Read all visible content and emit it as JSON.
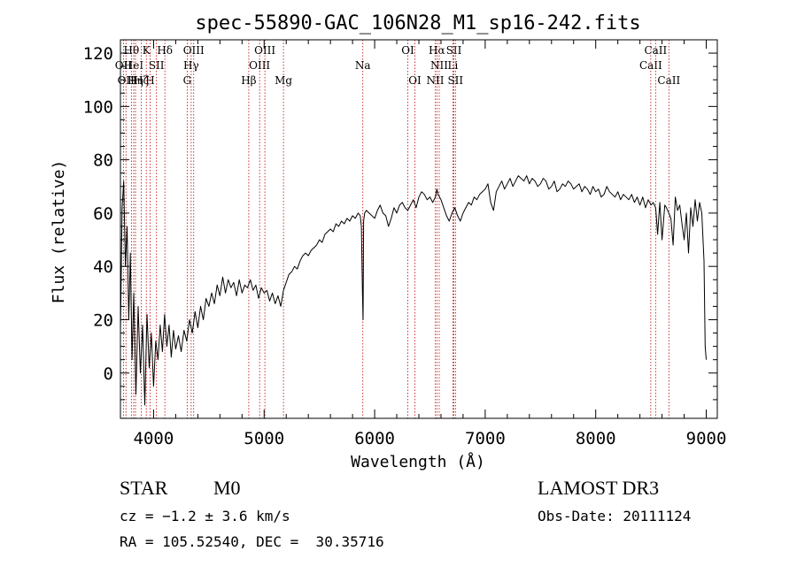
{
  "chart_data": {
    "type": "line",
    "title": "spec-55890-GAC_106N28_M1_sp16-242.fits",
    "xlabel": "Wavelength (Å)",
    "ylabel": "Flux (relative)",
    "xlim": [
      3700,
      9100
    ],
    "ylim": [
      -17,
      125
    ],
    "xticks": [
      4000,
      5000,
      6000,
      7000,
      8000,
      9000
    ],
    "yticks": [
      0,
      20,
      40,
      60,
      80,
      100,
      120
    ],
    "series": [
      {
        "color": "#000000",
        "x": [
          3700,
          3715,
          3730,
          3745,
          3760,
          3775,
          3790,
          3805,
          3820,
          3840,
          3860,
          3880,
          3900,
          3920,
          3940,
          3960,
          3980,
          4000,
          4020,
          4040,
          4060,
          4080,
          4100,
          4120,
          4140,
          4160,
          4180,
          4200,
          4225,
          4250,
          4275,
          4300,
          4325,
          4350,
          4375,
          4400,
          4425,
          4450,
          4475,
          4500,
          4525,
          4550,
          4575,
          4600,
          4625,
          4650,
          4675,
          4700,
          4725,
          4750,
          4775,
          4800,
          4825,
          4850,
          4875,
          4900,
          4925,
          4950,
          4975,
          5000,
          5025,
          5050,
          5075,
          5100,
          5125,
          5150,
          5175,
          5200,
          5225,
          5250,
          5275,
          5300,
          5325,
          5350,
          5375,
          5400,
          5425,
          5450,
          5475,
          5500,
          5525,
          5550,
          5575,
          5600,
          5625,
          5650,
          5675,
          5700,
          5725,
          5750,
          5775,
          5800,
          5825,
          5850,
          5870,
          5880,
          5890,
          5895,
          5900,
          5910,
          5925,
          5950,
          5975,
          6000,
          6025,
          6050,
          6075,
          6100,
          6125,
          6150,
          6175,
          6200,
          6225,
          6250,
          6275,
          6300,
          6325,
          6350,
          6375,
          6400,
          6425,
          6450,
          6475,
          6500,
          6525,
          6550,
          6563,
          6575,
          6600,
          6625,
          6650,
          6675,
          6700,
          6725,
          6750,
          6775,
          6800,
          6825,
          6850,
          6875,
          6900,
          6925,
          6950,
          6975,
          7000,
          7025,
          7050,
          7075,
          7100,
          7125,
          7150,
          7175,
          7200,
          7225,
          7250,
          7275,
          7300,
          7325,
          7350,
          7375,
          7400,
          7425,
          7450,
          7475,
          7500,
          7525,
          7550,
          7575,
          7600,
          7625,
          7650,
          7675,
          7700,
          7725,
          7750,
          7775,
          7800,
          7825,
          7850,
          7875,
          7900,
          7925,
          7950,
          7975,
          8000,
          8025,
          8050,
          8075,
          8100,
          8125,
          8150,
          8175,
          8200,
          8225,
          8250,
          8275,
          8300,
          8325,
          8350,
          8375,
          8400,
          8425,
          8450,
          8475,
          8500,
          8520,
          8542,
          8560,
          8580,
          8600,
          8625,
          8640,
          8662,
          8680,
          8700,
          8720,
          8740,
          8760,
          8780,
          8800,
          8820,
          8840,
          8860,
          8880,
          8900,
          8920,
          8940,
          8960,
          8980,
          8990,
          9000
        ],
        "y": [
          15,
          62,
          72,
          40,
          55,
          20,
          45,
          5,
          30,
          -8,
          25,
          0,
          18,
          -12,
          22,
          2,
          15,
          -5,
          12,
          5,
          18,
          8,
          22,
          10,
          18,
          6,
          16,
          9,
          14,
          8,
          16,
          12,
          20,
          15,
          23,
          17,
          25,
          20,
          28,
          25,
          30,
          26,
          33,
          29,
          36,
          30,
          35,
          32,
          34,
          29,
          35,
          30,
          33,
          32,
          35,
          31,
          33,
          28,
          32,
          30,
          31,
          27,
          30,
          26,
          29,
          25,
          31,
          34,
          37,
          38,
          40,
          39,
          42,
          44,
          45,
          44,
          46,
          47,
          48,
          50,
          49,
          52,
          53,
          54,
          53,
          56,
          55,
          57,
          56,
          58,
          57,
          59,
          58,
          60,
          59,
          55,
          30,
          20,
          57,
          60,
          61,
          60,
          59,
          58,
          61,
          63,
          60,
          59,
          55,
          58,
          62,
          60,
          63,
          64,
          62,
          61,
          63,
          65,
          62,
          66,
          68,
          67,
          65,
          66,
          64,
          66,
          69,
          67,
          65,
          62,
          59,
          57,
          60,
          62,
          59,
          57,
          60,
          62,
          64,
          63,
          66,
          65,
          67,
          68,
          69,
          71,
          64,
          61,
          68,
          70,
          72,
          69,
          71,
          73,
          70,
          72,
          74,
          73,
          72,
          74,
          71,
          73,
          72,
          70,
          71,
          73,
          72,
          69,
          70,
          72,
          68,
          69,
          71,
          70,
          72,
          71,
          69,
          70,
          71,
          68,
          70,
          69,
          67,
          70,
          68,
          69,
          66,
          67,
          70,
          68,
          67,
          66,
          68,
          65,
          67,
          66,
          65,
          67,
          64,
          66,
          63,
          66,
          62,
          65,
          63,
          64,
          62,
          52,
          64,
          50,
          63,
          62,
          60,
          58,
          48,
          66,
          61,
          63,
          56,
          50,
          60,
          45,
          62,
          55,
          65,
          57,
          64,
          60,
          42,
          10,
          5
        ]
      }
    ],
    "line_marks": [
      {
        "x": 3727,
        "label": "OII",
        "row": 2
      },
      {
        "x": 3750,
        "label": "OII",
        "row": 3
      },
      {
        "x": 3799,
        "label": "Hθ",
        "row": 1
      },
      {
        "x": 3820,
        "label": "HeI",
        "row": 2
      },
      {
        "x": 3836,
        "label": "Hη",
        "row": 3
      },
      {
        "x": 3889,
        "label": "Hζ",
        "row": 3
      },
      {
        "x": 3934,
        "label": "K",
        "row": 1
      },
      {
        "x": 3968,
        "label": "H",
        "row": 3
      },
      {
        "x": 4026,
        "label": "SII",
        "row": 2
      },
      {
        "x": 4102,
        "label": "Hδ",
        "row": 1
      },
      {
        "x": 4304,
        "label": "G",
        "row": 3
      },
      {
        "x": 4340,
        "label": "Hγ",
        "row": 2
      },
      {
        "x": 4363,
        "label": "OIII",
        "row": 1
      },
      {
        "x": 4861,
        "label": "Hβ",
        "row": 3
      },
      {
        "x": 4959,
        "label": "OIII",
        "row": 2
      },
      {
        "x": 5007,
        "label": "OIII",
        "row": 1
      },
      {
        "x": 5175,
        "label": "Mg",
        "row": 3
      },
      {
        "x": 5893,
        "label": "Na",
        "row": 2
      },
      {
        "x": 6300,
        "label": "OI",
        "row": 1
      },
      {
        "x": 6364,
        "label": "OI",
        "row": 3
      },
      {
        "x": 6548,
        "label": "NII",
        "row": 3
      },
      {
        "x": 6563,
        "label": "Hα",
        "row": 1
      },
      {
        "x": 6584,
        "label": "NII",
        "row": 2
      },
      {
        "x": 6708,
        "label": "Li",
        "row": 2
      },
      {
        "x": 6717,
        "label": "SII",
        "row": 1
      },
      {
        "x": 6731,
        "label": "SII",
        "row": 3
      },
      {
        "x": 8498,
        "label": "CaII",
        "row": 2
      },
      {
        "x": 8542,
        "label": "CaII",
        "row": 1
      },
      {
        "x": 8662,
        "label": "CaII",
        "row": 3
      }
    ]
  },
  "info": {
    "class": "STAR",
    "subclass": "M0",
    "cz": "cz = −1.2 ± 3.6 km/s",
    "radec": "RA = 105.52540, DEC =  30.35716",
    "survey": "LAMOST DR3",
    "obsdate": "Obs-Date: 20111124"
  }
}
